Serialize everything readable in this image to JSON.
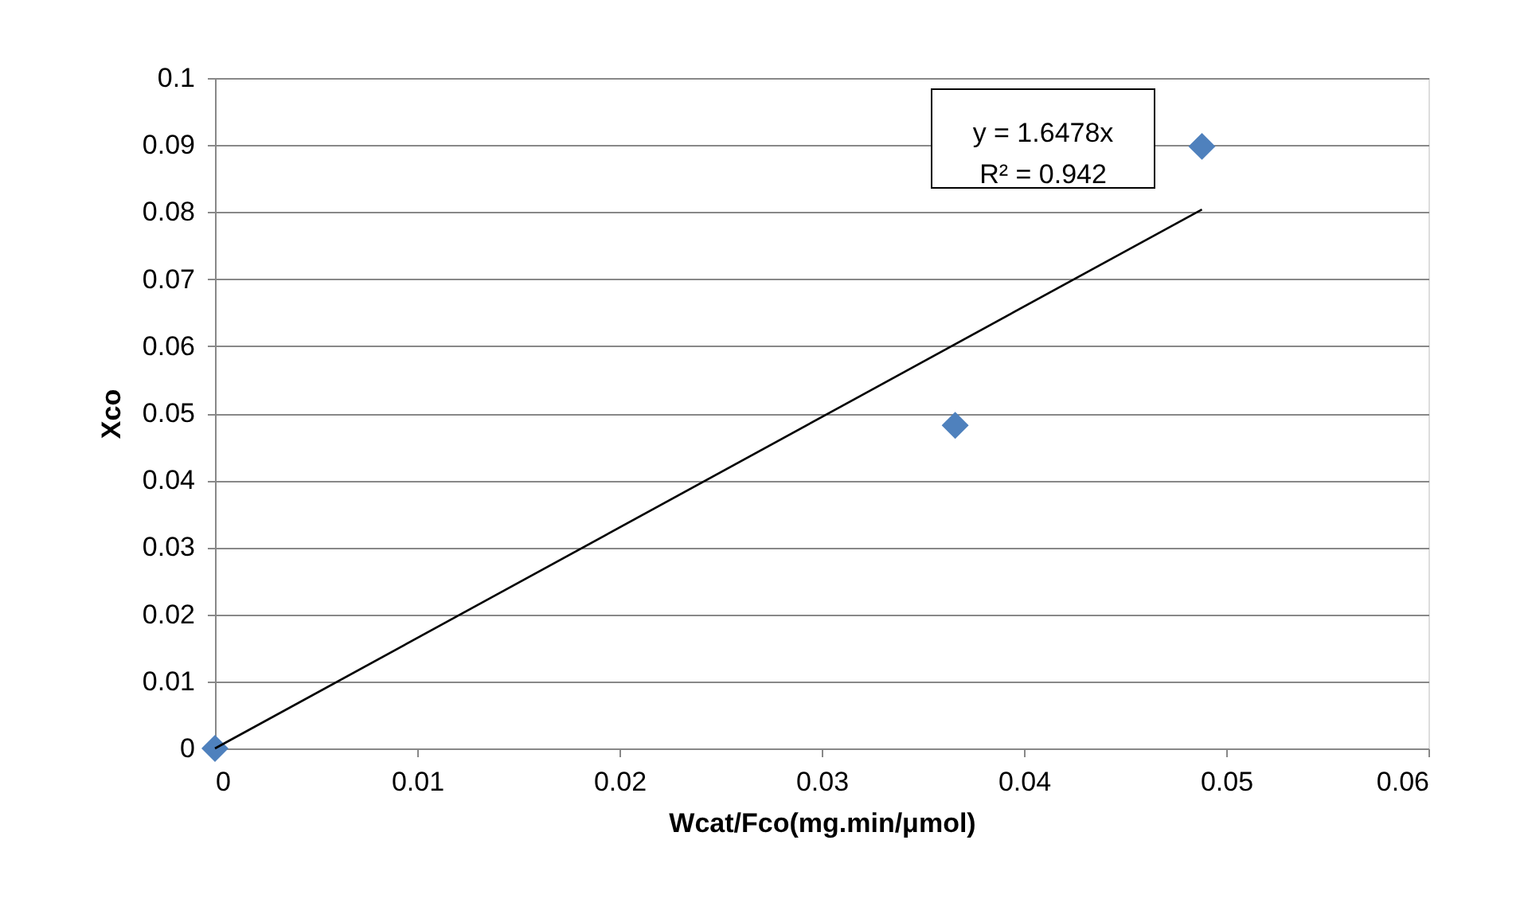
{
  "chart_data": {
    "type": "scatter",
    "xlabel": "Wcat/Fco(mg.min/μmol)",
    "ylabel": "Xco",
    "xlim": [
      0,
      0.06
    ],
    "xticks": [
      0,
      0.01,
      0.02,
      0.03,
      0.04,
      0.05,
      0.06
    ],
    "ylim": [
      0,
      0.1
    ],
    "yticks": [
      0,
      0.01,
      0.02,
      0.03,
      0.04,
      0.05,
      0.06,
      0.07,
      0.08,
      0.09,
      0.1
    ],
    "grid": "y",
    "marker": "diamond",
    "annotations": [
      "y = 1.6478x",
      "R² = 0.942"
    ],
    "series": [
      {
        "color": "#4f81bd",
        "x": [
          0,
          0.0366,
          0.0488
        ],
        "values": [
          0,
          0.0482,
          0.0898
        ]
      },
      {
        "type": "line",
        "color": "#000000",
        "marker": "none",
        "x": [
          0,
          0.0488
        ],
        "values": [
          0,
          0.0804
        ]
      }
    ]
  }
}
